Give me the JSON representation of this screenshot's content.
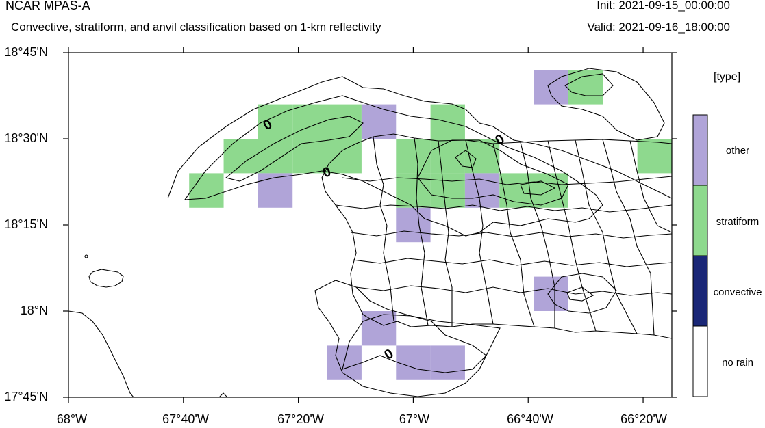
{
  "header": {
    "title": "NCAR MPAS-A",
    "subtitle": "Convective, stratiform, and anvil classification based on 1-km reflectivity",
    "init": "Init: 2021-09-15_00:00:00",
    "valid": "Valid: 2021-09-16_18:00:00"
  },
  "axes": {
    "lat_ticks": [
      "18°45'N",
      "18°30'N",
      "18°15'N",
      "18°N",
      "17°45'N"
    ],
    "lon_ticks": [
      "68°W",
      "67°40'W",
      "67°20'W",
      "67°W",
      "66°40'W",
      "66°20'W"
    ],
    "lat_range": [
      17.75,
      18.75
    ],
    "lon_range": [
      -68.0,
      -66.25
    ]
  },
  "legend": {
    "title": "[type]",
    "entries": [
      {
        "label": "other",
        "color": "#b0a4d8"
      },
      {
        "label": "stratiform",
        "color": "#8ed98e"
      },
      {
        "label": "convective",
        "color": "#1a2777"
      },
      {
        "label": "no rain",
        "color": "#ffffff"
      }
    ]
  },
  "contour_labels": [
    "0",
    "0",
    "0",
    "0"
  ],
  "chart_data": {
    "type": "heatmap",
    "cell_size_deg": 0.1,
    "cells": [
      {
        "lon": -66.6,
        "lat": 18.65,
        "class": "other"
      },
      {
        "lon": -66.5,
        "lat": 18.65,
        "class": "stratiform"
      },
      {
        "lon": -67.4,
        "lat": 18.55,
        "class": "stratiform"
      },
      {
        "lon": -67.3,
        "lat": 18.55,
        "class": "stratiform"
      },
      {
        "lon": -67.2,
        "lat": 18.55,
        "class": "stratiform"
      },
      {
        "lon": -67.1,
        "lat": 18.55,
        "class": "other"
      },
      {
        "lon": -66.9,
        "lat": 18.55,
        "class": "stratiform"
      },
      {
        "lon": -67.5,
        "lat": 18.45,
        "class": "stratiform"
      },
      {
        "lon": -67.4,
        "lat": 18.45,
        "class": "stratiform"
      },
      {
        "lon": -67.3,
        "lat": 18.45,
        "class": "stratiform"
      },
      {
        "lon": -67.2,
        "lat": 18.45,
        "class": "stratiform"
      },
      {
        "lon": -67.0,
        "lat": 18.45,
        "class": "stratiform"
      },
      {
        "lon": -66.9,
        "lat": 18.45,
        "class": "stratiform"
      },
      {
        "lon": -66.8,
        "lat": 18.45,
        "class": "stratiform"
      },
      {
        "lon": -66.3,
        "lat": 18.45,
        "class": "stratiform"
      },
      {
        "lon": -67.6,
        "lat": 18.35,
        "class": "stratiform"
      },
      {
        "lon": -67.4,
        "lat": 18.35,
        "class": "other"
      },
      {
        "lon": -67.0,
        "lat": 18.35,
        "class": "stratiform"
      },
      {
        "lon": -66.9,
        "lat": 18.35,
        "class": "stratiform"
      },
      {
        "lon": -66.8,
        "lat": 18.35,
        "class": "other"
      },
      {
        "lon": -66.7,
        "lat": 18.35,
        "class": "stratiform"
      },
      {
        "lon": -66.6,
        "lat": 18.35,
        "class": "stratiform"
      },
      {
        "lon": -67.0,
        "lat": 18.25,
        "class": "other"
      },
      {
        "lon": -66.6,
        "lat": 18.05,
        "class": "other"
      },
      {
        "lon": -67.1,
        "lat": 17.95,
        "class": "other"
      },
      {
        "lon": -67.2,
        "lat": 17.85,
        "class": "other"
      },
      {
        "lon": -67.0,
        "lat": 17.85,
        "class": "other"
      },
      {
        "lon": -66.9,
        "lat": 17.85,
        "class": "other"
      }
    ]
  }
}
